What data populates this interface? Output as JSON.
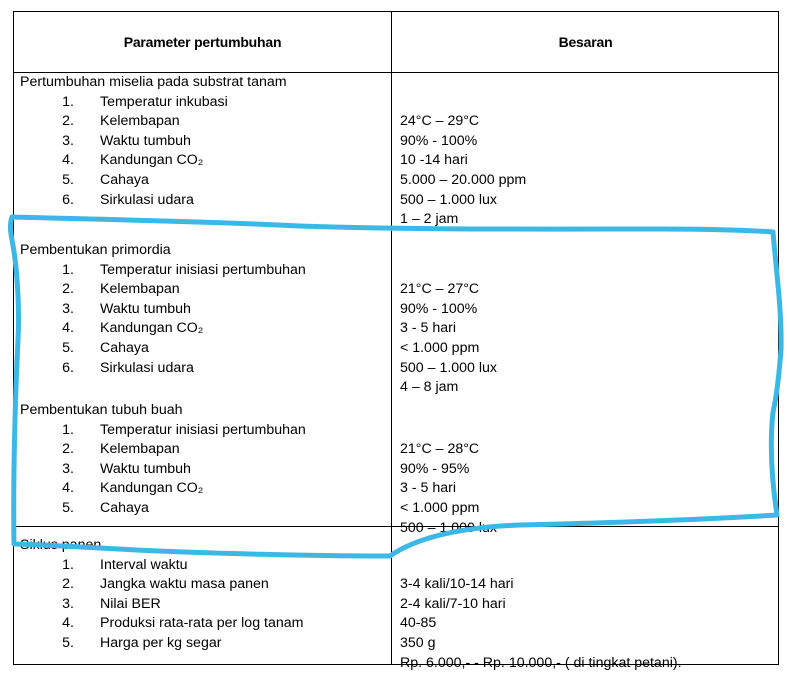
{
  "header": {
    "parameter": "Parameter pertumbuhan",
    "value": "Besaran"
  },
  "sections": [
    {
      "title": "Pertumbuhan miselia pada substrat tanam",
      "items": [
        {
          "num": "1.",
          "label": "Temperatur inkubasi"
        },
        {
          "num": "2.",
          "label": "Kelembapan"
        },
        {
          "num": "3.",
          "label": "Waktu tumbuh"
        },
        {
          "num": "4.",
          "label": "Kandungan CO₂"
        },
        {
          "num": "5.",
          "label": "Cahaya"
        },
        {
          "num": "6.",
          "label": "Sirkulasi udara"
        }
      ],
      "values": [
        "24°C – 29°C",
        "90% - 100%",
        "10 -14 hari",
        "5.000 – 20.000 ppm",
        "500 – 1.000 lux",
        "1 – 2 jam"
      ]
    },
    {
      "title": "Pembentukan primordia",
      "items": [
        {
          "num": "1.",
          "label": "Temperatur inisiasi pertumbuhan"
        },
        {
          "num": "2.",
          "label": "Kelembapan"
        },
        {
          "num": "3.",
          "label": "Waktu tumbuh"
        },
        {
          "num": "4.",
          "label": "Kandungan CO₂"
        },
        {
          "num": "5.",
          "label": "Cahaya"
        },
        {
          "num": "6.",
          "label": "Sirkulasi udara"
        }
      ],
      "values": [
        "21°C – 27°C",
        "90% - 100%",
        "3  - 5 hari",
        "< 1.000 ppm",
        "500 – 1.000 lux",
        "4 – 8 jam"
      ]
    },
    {
      "title": "Pembentukan tubuh buah",
      "items": [
        {
          "num": "1.",
          "label": "Temperatur inisiasi pertumbuhan"
        },
        {
          "num": "2.",
          "label": "Kelembapan"
        },
        {
          "num": "3.",
          "label": "Waktu tumbuh"
        },
        {
          "num": "4.",
          "label": "Kandungan CO₂"
        },
        {
          "num": "5.",
          "label": "Cahaya"
        }
      ],
      "values": [
        "21°C – 28°C",
        "90% - 95%",
        "3 - 5 hari",
        "< 1.000 ppm",
        "500 – 1.000 lux"
      ]
    },
    {
      "title": "Siklus panen",
      "items": [
        {
          "num": "1.",
          "label": "Interval waktu"
        },
        {
          "num": "2.",
          "label": "Jangka waktu masa panen"
        },
        {
          "num": "3.",
          "label": "Nilai BER"
        },
        {
          "num": "4.",
          "label": "Produksi rata-rata per log tanam"
        },
        {
          "num": "5.",
          "label": "Harga per kg segar"
        }
      ],
      "values": [
        "3-4 kali/10-14 hari",
        "2-4 kali/7-10 hari",
        "40-85",
        "350 g",
        "Rp. 6.000,- - Rp. 10.000,- ( di tingkat petani)."
      ]
    }
  ],
  "annotation": {
    "color": "#3cb8e6"
  }
}
